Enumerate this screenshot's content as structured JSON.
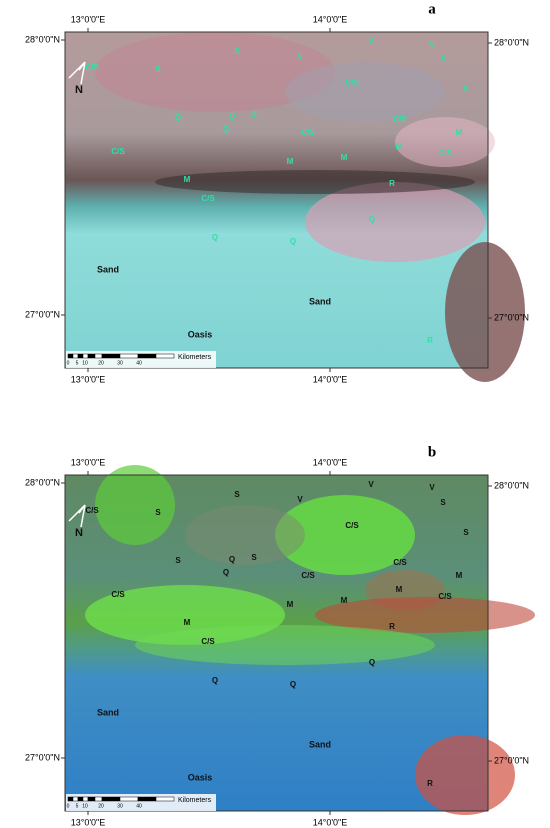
{
  "panels": [
    {
      "label": "a",
      "axes": {
        "top": [
          "13°0'0\"E",
          "14°0'0\"E"
        ],
        "bottom": [
          "13°0'0\"E",
          "14°0'0\"E"
        ],
        "left": [
          "28°0'0\"N",
          "27°0'0\"N"
        ],
        "right": [
          "28°0'0\"N",
          "27°0'0\"N"
        ]
      },
      "north": "N",
      "scale": {
        "ticks": [
          "0",
          "5",
          "10",
          "20",
          "30",
          "40"
        ],
        "unit": "Kilometers"
      },
      "labels": [
        "C/S",
        "S",
        "S",
        "V",
        "V",
        "V",
        "S",
        "S",
        "C/S",
        "Q",
        "Q",
        "S",
        "Q",
        "C/S",
        "C/S",
        "M",
        "C/S",
        "M",
        "C/S",
        "M",
        "M",
        "M",
        "R",
        "C/S",
        "Q",
        "Q",
        "Q",
        "Sand",
        "Sand",
        "Oasis",
        "R"
      ]
    },
    {
      "label": "b",
      "axes": {
        "top": [
          "13°0'0\"E",
          "14°0'0\"E"
        ],
        "bottom": [
          "13°0'0\"E",
          "14°0'0\"E"
        ],
        "left": [
          "28°0'0\"N",
          "27°0'0\"N"
        ],
        "right": [
          "28°0'0\"N",
          "27°0'0\"N"
        ]
      },
      "north": "N",
      "scale": {
        "ticks": [
          "0",
          "5",
          "10",
          "20",
          "30",
          "40"
        ],
        "unit": "Kilometers"
      },
      "labels": [
        "C/S",
        "S",
        "S",
        "V",
        "V",
        "V",
        "S",
        "S",
        "C/S",
        "Q",
        "S",
        "S",
        "Q",
        "C/S",
        "C/S",
        "M",
        "C/S",
        "M",
        "C/S",
        "M",
        "M",
        "M",
        "R",
        "C/S",
        "Q",
        "Q",
        "Q",
        "Sand",
        "Sand",
        "Oasis",
        "R"
      ]
    }
  ]
}
